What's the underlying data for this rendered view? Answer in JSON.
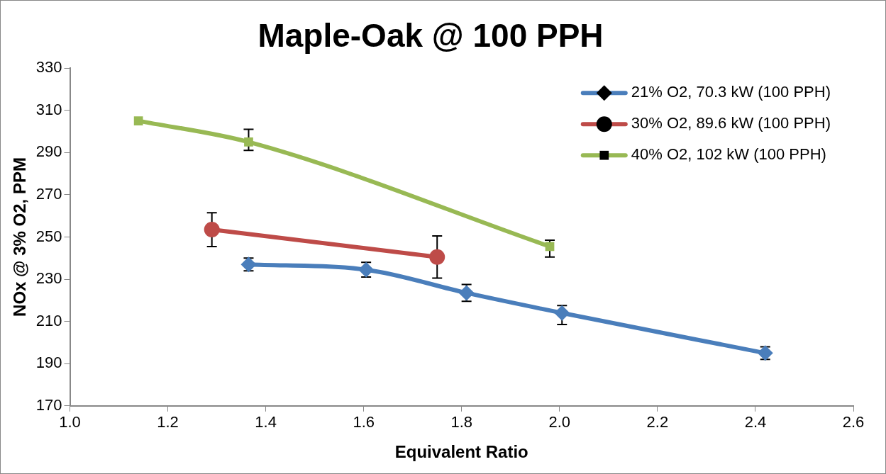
{
  "chart_data": {
    "type": "line",
    "title": "Maple-Oak @ 100 PPH",
    "xlabel": "Equivalent Ratio",
    "ylabel": "NOx @ 3% O2, PPM",
    "xlim": [
      1.0,
      2.6
    ],
    "xticks": [
      {
        "value": 1.0,
        "label": "1.0"
      },
      {
        "value": 1.2,
        "label": "1.2"
      },
      {
        "value": 1.4,
        "label": "1.4"
      },
      {
        "value": 1.6,
        "label": "1.6"
      },
      {
        "value": 1.8,
        "label": "1.8"
      },
      {
        "value": 2.0,
        "label": "2.0"
      },
      {
        "value": 2.2,
        "label": "2.2"
      },
      {
        "value": 2.4,
        "label": "2.4"
      },
      {
        "value": 2.6,
        "label": "2.6"
      }
    ],
    "ylim": [
      170,
      330
    ],
    "yticks": [
      170,
      190,
      210,
      230,
      250,
      270,
      290,
      310,
      330
    ],
    "grid": false,
    "legend": "top right",
    "series": [
      {
        "name": "21% O2, 70.3 kW (100 PPH)",
        "color": "#4a7ebb",
        "marker": "diamond",
        "x": [
          1.365,
          1.605,
          1.81,
          2.005,
          2.42
        ],
        "values": [
          237,
          234.5,
          223.5,
          214,
          195
        ],
        "errors": [
          3,
          3.5,
          4,
          [
            208.5,
            217.5
          ],
          3
        ]
      },
      {
        "name": "30% O2, 89.6 kW (100 PPH)",
        "color": "#be4b48",
        "marker": "circle",
        "x": [
          1.29,
          1.75
        ],
        "values": [
          253.5,
          240.5
        ],
        "errors": [
          8,
          10
        ]
      },
      {
        "name": "40% O2, 102 kW (100 PPH)",
        "color": "#98b954",
        "marker": "square",
        "x": [
          1.14,
          1.365,
          1.98
        ],
        "values": [
          305,
          295,
          245.5
        ],
        "errors": [
          null,
          [
            291,
            301
          ],
          [
            240.5,
            248.5
          ]
        ]
      }
    ]
  }
}
